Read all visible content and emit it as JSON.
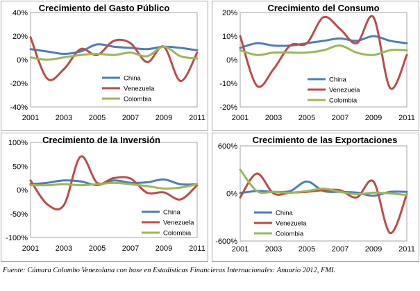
{
  "colors": {
    "China": "#4a7ebb",
    "Venezuela": "#be4b48",
    "Colombia": "#98b954"
  },
  "source_note": "Fuente: Cámara Colombo Venezolana con base en Estadísticas Financieras Internacionales: Anuario 2012, FMI.",
  "chart_data": [
    {
      "type": "line",
      "title": "Crecimiento del Gasto Público",
      "x": [
        2001,
        2002,
        2003,
        2004,
        2005,
        2006,
        2007,
        2008,
        2009,
        2010,
        2011
      ],
      "x_ticks": [
        "2001",
        "2003",
        "2005",
        "2007",
        "2009",
        "2011"
      ],
      "ylim": [
        -40,
        40
      ],
      "y_ticks": [
        40,
        20,
        0,
        -20,
        -40
      ],
      "y_tick_labels": [
        "40%",
        "20%",
        "0%",
        "-20%",
        "-40%"
      ],
      "legend": "center",
      "series": [
        {
          "name": "China",
          "values": [
            9,
            7,
            5,
            7,
            13,
            11,
            10,
            9,
            11,
            10,
            8
          ]
        },
        {
          "name": "Venezuela",
          "values": [
            19,
            -16,
            -8,
            9,
            4,
            16,
            14,
            -2,
            11,
            -18,
            6
          ]
        },
        {
          "name": "Colombia",
          "values": [
            2,
            0,
            2,
            4,
            5,
            4,
            6,
            3,
            11,
            3,
            1
          ]
        }
      ]
    },
    {
      "type": "line",
      "title": "Crecimiento del Consumo",
      "x": [
        2001,
        2002,
        2003,
        2004,
        2005,
        2006,
        2007,
        2008,
        2009,
        2010,
        2011
      ],
      "x_ticks": [
        "2001",
        "2003",
        "2005",
        "2007",
        "2009",
        "2011"
      ],
      "ylim": [
        -20,
        20
      ],
      "y_ticks": [
        20,
        10,
        0,
        -10,
        -20
      ],
      "y_tick_labels": [
        "20%",
        "10%",
        "0%",
        "-10%",
        "-20%"
      ],
      "legend": "center",
      "series": [
        {
          "name": "China",
          "values": [
            5,
            7,
            6,
            6,
            7,
            8,
            9,
            8,
            10,
            8,
            7
          ]
        },
        {
          "name": "Venezuela",
          "values": [
            10,
            -11,
            -4,
            6,
            7,
            18,
            13,
            7,
            18,
            -12,
            2
          ]
        },
        {
          "name": "Colombia",
          "values": [
            4,
            2,
            3,
            3,
            3,
            4,
            6,
            3,
            2,
            4,
            4
          ]
        }
      ]
    },
    {
      "type": "line",
      "title": "Crecimiento de la Inversión",
      "x": [
        2001,
        2002,
        2003,
        2004,
        2005,
        2006,
        2007,
        2008,
        2009,
        2010,
        2011
      ],
      "x_ticks": [
        "2001",
        "2003",
        "2005",
        "2007",
        "2009",
        "2011"
      ],
      "ylim": [
        -100,
        100
      ],
      "y_ticks": [
        100,
        50,
        0,
        -50,
        -100
      ],
      "y_tick_labels": [
        "100%",
        "50%",
        "0%",
        "-50%",
        "-100%"
      ],
      "legend": "center",
      "series": [
        {
          "name": "China",
          "values": [
            12,
            15,
            20,
            18,
            10,
            20,
            15,
            16,
            22,
            12,
            12
          ]
        },
        {
          "name": "Venezuela",
          "values": [
            20,
            -30,
            -32,
            70,
            15,
            25,
            24,
            -6,
            -5,
            -20,
            10
          ]
        },
        {
          "name": "Colombia",
          "values": [
            10,
            10,
            12,
            10,
            12,
            15,
            12,
            8,
            3,
            5,
            12
          ]
        }
      ]
    },
    {
      "type": "line",
      "title": "Crecimiento de las Exportaciones",
      "x": [
        2001,
        2002,
        2003,
        2004,
        2005,
        2006,
        2007,
        2008,
        2009,
        2010,
        2011
      ],
      "x_ticks": [
        "2001",
        "2003",
        "2005",
        "2007",
        "2009",
        "2011"
      ],
      "ylim": [
        -600,
        600
      ],
      "y_ticks": [
        600,
        0,
        -600
      ],
      "y_tick_labels": [
        "600%",
        "0%",
        "-600%"
      ],
      "legend": "center",
      "series": [
        {
          "name": "China",
          "values": [
            5,
            30,
            20,
            30,
            150,
            30,
            20,
            10,
            -30,
            20,
            20
          ]
        },
        {
          "name": "Venezuela",
          "values": [
            -50,
            250,
            0,
            10,
            20,
            40,
            40,
            -50,
            150,
            -500,
            -10
          ]
        },
        {
          "name": "Colombia",
          "values": [
            300,
            30,
            20,
            10,
            30,
            60,
            20,
            -10,
            10,
            0,
            -20
          ]
        }
      ]
    }
  ]
}
